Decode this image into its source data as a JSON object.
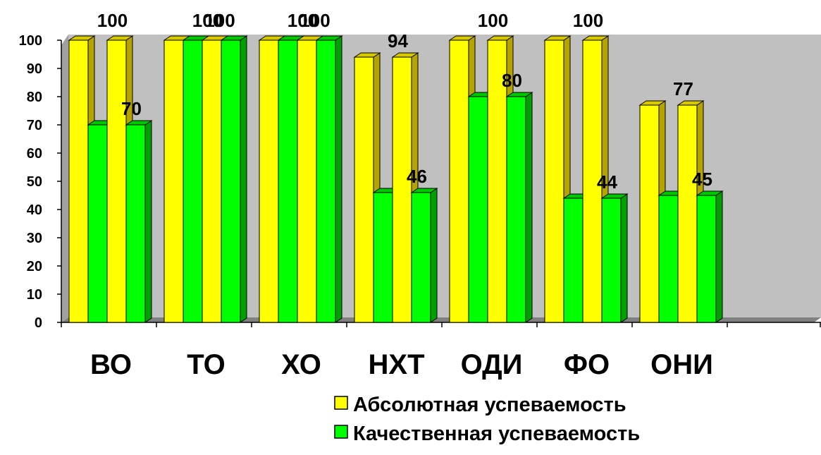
{
  "chart_data": {
    "type": "bar",
    "categories": [
      "ВО",
      "ТО",
      "ХО",
      "НХТ",
      "ОДИ",
      "ФО",
      "ОНИ"
    ],
    "series": [
      {
        "name": "Абсолютная успеваемость",
        "color": "#ffff00",
        "side_color": "#b5a400",
        "top_color": "#d8c800",
        "values": [
          [
            100,
            100
          ],
          [
            100,
            100
          ],
          [
            100,
            100
          ],
          [
            94,
            94
          ],
          [
            100,
            100
          ],
          [
            100,
            100
          ],
          [
            77,
            77
          ]
        ]
      },
      {
        "name": "Качественная успеваемость",
        "color": "#00ff00",
        "side_color": "#00a000",
        "top_color": "#00c800",
        "values": [
          [
            70,
            70
          ],
          [
            100,
            100
          ],
          [
            100,
            100
          ],
          [
            46,
            46
          ],
          [
            80,
            80
          ],
          [
            44,
            44
          ],
          [
            45,
            45
          ]
        ]
      }
    ],
    "data_labels": [
      {
        "category": 0,
        "series": 0,
        "text": "100"
      },
      {
        "category": 0,
        "series": 1,
        "text": "70"
      },
      {
        "category": 1,
        "series": 0,
        "text": "100"
      },
      {
        "category": 1,
        "series": 1,
        "text": "100"
      },
      {
        "category": 2,
        "series": 0,
        "text": "100"
      },
      {
        "category": 2,
        "series": 1,
        "text": "100"
      },
      {
        "category": 3,
        "series": 0,
        "text": "94"
      },
      {
        "category": 3,
        "series": 1,
        "text": "46"
      },
      {
        "category": 4,
        "series": 0,
        "text": "100"
      },
      {
        "category": 4,
        "series": 1,
        "text": "80"
      },
      {
        "category": 5,
        "series": 0,
        "text": "100"
      },
      {
        "category": 5,
        "series": 1,
        "text": "44"
      },
      {
        "category": 6,
        "series": 0,
        "text": "77"
      },
      {
        "category": 6,
        "series": 1,
        "text": "45"
      }
    ],
    "ylim": [
      0,
      100
    ],
    "yticks": [
      "0",
      "10",
      "20",
      "30",
      "40",
      "50",
      "60",
      "70",
      "80",
      "90",
      "100"
    ],
    "grid": false,
    "legend_position": "bottom-right",
    "plot_background": "#c0c0c0",
    "three_d": true
  }
}
